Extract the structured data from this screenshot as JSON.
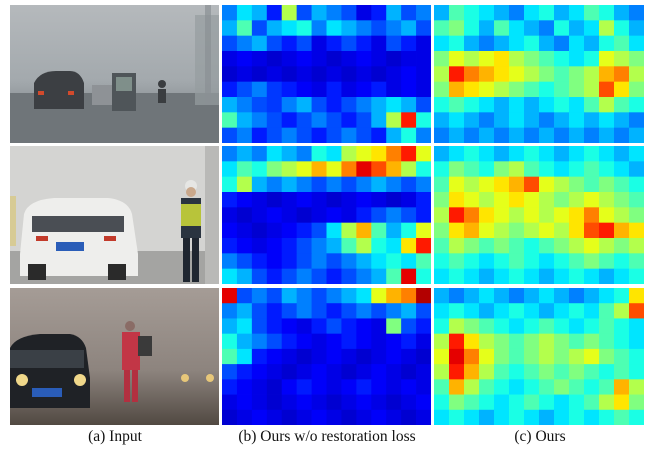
{
  "figure": {
    "captions": [
      "(a) Input",
      "(b) Ours w/o restoration loss",
      "(c) Ours"
    ],
    "rows": [
      {
        "photo": {
          "description_name": "foggy road with cars, tricycle and cyclist",
          "sky": "#a8aeb2",
          "road": "#6f7579"
        },
        "heatmap_b": {
          "cols": 14,
          "rows": 9,
          "rows_values": [
            [
              0.25,
              0.35,
              0.3,
              0.15,
              0.55,
              0.2,
              0.3,
              0.25,
              0.2,
              0.1,
              0.15,
              0.3,
              0.2,
              0.25
            ],
            [
              0.3,
              0.45,
              0.2,
              0.3,
              0.35,
              0.4,
              0.25,
              0.35,
              0.3,
              0.25,
              0.2,
              0.25,
              0.3,
              0.2
            ],
            [
              0.2,
              0.25,
              0.3,
              0.2,
              0.15,
              0.2,
              0.1,
              0.15,
              0.2,
              0.15,
              0.1,
              0.2,
              0.15,
              0.1
            ],
            [
              0.1,
              0.12,
              0.1,
              0.08,
              0.1,
              0.12,
              0.1,
              0.08,
              0.1,
              0.12,
              0.1,
              0.08,
              0.1,
              0.1
            ],
            [
              0.08,
              0.1,
              0.08,
              0.1,
              0.08,
              0.1,
              0.08,
              0.1,
              0.08,
              0.1,
              0.08,
              0.1,
              0.12,
              0.1
            ],
            [
              0.15,
              0.2,
              0.25,
              0.18,
              0.15,
              0.12,
              0.1,
              0.15,
              0.1,
              0.12,
              0.15,
              0.1,
              0.12,
              0.1
            ],
            [
              0.3,
              0.25,
              0.2,
              0.18,
              0.25,
              0.3,
              0.2,
              0.15,
              0.2,
              0.25,
              0.3,
              0.35,
              0.3,
              0.2
            ],
            [
              0.45,
              0.3,
              0.25,
              0.2,
              0.15,
              0.2,
              0.25,
              0.2,
              0.15,
              0.2,
              0.3,
              0.55,
              0.85,
              0.4
            ],
            [
              0.2,
              0.25,
              0.15,
              0.2,
              0.25,
              0.2,
              0.15,
              0.2,
              0.25,
              0.2,
              0.15,
              0.3,
              0.4,
              0.25
            ]
          ]
        },
        "heatmap_c": {
          "cols": 14,
          "rows": 9,
          "rows_values": [
            [
              0.3,
              0.45,
              0.4,
              0.35,
              0.3,
              0.25,
              0.35,
              0.4,
              0.3,
              0.35,
              0.45,
              0.4,
              0.3,
              0.25
            ],
            [
              0.45,
              0.5,
              0.4,
              0.3,
              0.45,
              0.35,
              0.3,
              0.25,
              0.4,
              0.3,
              0.35,
              0.55,
              0.4,
              0.3
            ],
            [
              0.35,
              0.4,
              0.3,
              0.25,
              0.3,
              0.35,
              0.4,
              0.3,
              0.25,
              0.35,
              0.3,
              0.4,
              0.45,
              0.35
            ],
            [
              0.5,
              0.6,
              0.55,
              0.6,
              0.65,
              0.55,
              0.5,
              0.45,
              0.4,
              0.35,
              0.4,
              0.6,
              0.55,
              0.5
            ],
            [
              0.55,
              0.85,
              0.75,
              0.7,
              0.65,
              0.6,
              0.55,
              0.5,
              0.45,
              0.5,
              0.55,
              0.7,
              0.75,
              0.55
            ],
            [
              0.5,
              0.7,
              0.65,
              0.6,
              0.55,
              0.5,
              0.45,
              0.4,
              0.45,
              0.5,
              0.55,
              0.8,
              0.65,
              0.5
            ],
            [
              0.4,
              0.45,
              0.4,
              0.35,
              0.3,
              0.35,
              0.3,
              0.35,
              0.4,
              0.35,
              0.45,
              0.55,
              0.45,
              0.4
            ],
            [
              0.3,
              0.35,
              0.3,
              0.25,
              0.3,
              0.35,
              0.3,
              0.25,
              0.3,
              0.35,
              0.3,
              0.35,
              0.3,
              0.25
            ],
            [
              0.25,
              0.3,
              0.25,
              0.3,
              0.25,
              0.3,
              0.25,
              0.3,
              0.25,
              0.3,
              0.25,
              0.3,
              0.25,
              0.3
            ]
          ]
        }
      },
      {
        "photo": {
          "description_name": "foggy street with white SUV and police officer",
          "sky": "#d2d2d0",
          "road": "#9a9a98"
        },
        "heatmap_b": {
          "cols": 14,
          "rows": 9,
          "rows_values": [
            [
              0.25,
              0.3,
              0.25,
              0.35,
              0.3,
              0.25,
              0.4,
              0.35,
              0.55,
              0.6,
              0.65,
              0.75,
              0.85,
              0.6
            ],
            [
              0.35,
              0.45,
              0.4,
              0.5,
              0.55,
              0.6,
              0.7,
              0.6,
              0.75,
              0.9,
              0.8,
              0.7,
              0.55,
              0.4
            ],
            [
              0.4,
              0.55,
              0.3,
              0.25,
              0.3,
              0.25,
              0.2,
              0.25,
              0.2,
              0.25,
              0.3,
              0.25,
              0.2,
              0.25
            ],
            [
              0.15,
              0.12,
              0.1,
              0.08,
              0.1,
              0.12,
              0.1,
              0.08,
              0.1,
              0.12,
              0.1,
              0.08,
              0.1,
              0.15
            ],
            [
              0.1,
              0.08,
              0.1,
              0.12,
              0.1,
              0.08,
              0.1,
              0.12,
              0.1,
              0.15,
              0.2,
              0.25,
              0.2,
              0.15
            ],
            [
              0.12,
              0.1,
              0.08,
              0.1,
              0.12,
              0.15,
              0.2,
              0.35,
              0.55,
              0.7,
              0.45,
              0.3,
              0.4,
              0.6
            ],
            [
              0.15,
              0.12,
              0.1,
              0.12,
              0.15,
              0.2,
              0.25,
              0.3,
              0.45,
              0.55,
              0.4,
              0.35,
              0.65,
              0.85
            ],
            [
              0.25,
              0.2,
              0.15,
              0.12,
              0.15,
              0.2,
              0.25,
              0.2,
              0.25,
              0.3,
              0.35,
              0.4,
              0.35,
              0.45
            ],
            [
              0.35,
              0.3,
              0.2,
              0.15,
              0.2,
              0.25,
              0.2,
              0.15,
              0.2,
              0.25,
              0.3,
              0.45,
              0.9,
              0.4
            ]
          ]
        },
        "heatmap_c": {
          "cols": 14,
          "rows": 9,
          "rows_values": [
            [
              0.3,
              0.35,
              0.4,
              0.35,
              0.3,
              0.35,
              0.4,
              0.35,
              0.3,
              0.35,
              0.4,
              0.35,
              0.3,
              0.35
            ],
            [
              0.4,
              0.5,
              0.45,
              0.4,
              0.5,
              0.55,
              0.45,
              0.4,
              0.35,
              0.4,
              0.45,
              0.4,
              0.35,
              0.3
            ],
            [
              0.45,
              0.6,
              0.55,
              0.6,
              0.65,
              0.7,
              0.8,
              0.6,
              0.55,
              0.5,
              0.45,
              0.5,
              0.45,
              0.4
            ],
            [
              0.5,
              0.65,
              0.6,
              0.55,
              0.6,
              0.65,
              0.6,
              0.55,
              0.5,
              0.55,
              0.6,
              0.55,
              0.5,
              0.45
            ],
            [
              0.55,
              0.85,
              0.75,
              0.65,
              0.6,
              0.55,
              0.6,
              0.55,
              0.6,
              0.65,
              0.75,
              0.6,
              0.55,
              0.5
            ],
            [
              0.5,
              0.65,
              0.7,
              0.6,
              0.55,
              0.5,
              0.55,
              0.6,
              0.55,
              0.65,
              0.8,
              0.85,
              0.7,
              0.65
            ],
            [
              0.45,
              0.55,
              0.5,
              0.45,
              0.5,
              0.45,
              0.4,
              0.45,
              0.5,
              0.55,
              0.6,
              0.55,
              0.5,
              0.55
            ],
            [
              0.4,
              0.45,
              0.4,
              0.35,
              0.4,
              0.45,
              0.4,
              0.35,
              0.4,
              0.45,
              0.5,
              0.45,
              0.4,
              0.45
            ],
            [
              0.35,
              0.4,
              0.35,
              0.3,
              0.35,
              0.4,
              0.35,
              0.3,
              0.35,
              0.4,
              0.35,
              0.3,
              0.35,
              0.4
            ]
          ]
        }
      },
      {
        "photo": {
          "description_name": "foggy road at dusk with dark car and pedestrian in red",
          "sky": "#9b928c",
          "road": "#5e5650"
        },
        "heatmap_b": {
          "cols": 14,
          "rows": 9,
          "rows_values": [
            [
              0.9,
              0.2,
              0.25,
              0.2,
              0.3,
              0.25,
              0.2,
              0.25,
              0.3,
              0.35,
              0.6,
              0.7,
              0.75,
              0.95
            ],
            [
              0.25,
              0.3,
              0.2,
              0.15,
              0.2,
              0.25,
              0.2,
              0.15,
              0.2,
              0.25,
              0.2,
              0.25,
              0.3,
              0.2
            ],
            [
              0.3,
              0.35,
              0.2,
              0.15,
              0.12,
              0.1,
              0.15,
              0.2,
              0.15,
              0.12,
              0.1,
              0.5,
              0.2,
              0.15
            ],
            [
              0.4,
              0.3,
              0.25,
              0.2,
              0.15,
              0.12,
              0.1,
              0.12,
              0.15,
              0.12,
              0.1,
              0.12,
              0.15,
              0.1
            ],
            [
              0.45,
              0.35,
              0.15,
              0.12,
              0.1,
              0.08,
              0.1,
              0.12,
              0.1,
              0.08,
              0.1,
              0.12,
              0.1,
              0.08
            ],
            [
              0.2,
              0.15,
              0.12,
              0.1,
              0.08,
              0.1,
              0.12,
              0.1,
              0.08,
              0.1,
              0.12,
              0.1,
              0.08,
              0.1
            ],
            [
              0.15,
              0.12,
              0.1,
              0.08,
              0.12,
              0.15,
              0.12,
              0.1,
              0.12,
              0.15,
              0.12,
              0.1,
              0.12,
              0.1
            ],
            [
              0.1,
              0.12,
              0.1,
              0.08,
              0.1,
              0.12,
              0.1,
              0.08,
              0.1,
              0.12,
              0.1,
              0.08,
              0.1,
              0.12
            ],
            [
              0.08,
              0.1,
              0.12,
              0.1,
              0.08,
              0.1,
              0.12,
              0.1,
              0.08,
              0.1,
              0.12,
              0.1,
              0.08,
              0.1
            ]
          ]
        },
        "heatmap_c": {
          "cols": 14,
          "rows": 9,
          "rows_values": [
            [
              0.3,
              0.25,
              0.3,
              0.35,
              0.3,
              0.25,
              0.3,
              0.35,
              0.3,
              0.25,
              0.3,
              0.35,
              0.4,
              0.65
            ],
            [
              0.35,
              0.4,
              0.35,
              0.3,
              0.35,
              0.4,
              0.35,
              0.3,
              0.35,
              0.4,
              0.35,
              0.45,
              0.55,
              0.8
            ],
            [
              0.4,
              0.55,
              0.5,
              0.45,
              0.4,
              0.35,
              0.4,
              0.45,
              0.4,
              0.35,
              0.4,
              0.45,
              0.4,
              0.35
            ],
            [
              0.55,
              0.85,
              0.65,
              0.55,
              0.5,
              0.45,
              0.5,
              0.55,
              0.5,
              0.45,
              0.5,
              0.45,
              0.4,
              0.35
            ],
            [
              0.6,
              0.9,
              0.75,
              0.6,
              0.5,
              0.45,
              0.5,
              0.55,
              0.5,
              0.55,
              0.6,
              0.5,
              0.45,
              0.4
            ],
            [
              0.55,
              0.85,
              0.7,
              0.55,
              0.45,
              0.4,
              0.45,
              0.5,
              0.45,
              0.5,
              0.45,
              0.4,
              0.45,
              0.4
            ],
            [
              0.45,
              0.7,
              0.55,
              0.45,
              0.4,
              0.35,
              0.4,
              0.45,
              0.5,
              0.45,
              0.4,
              0.45,
              0.7,
              0.55
            ],
            [
              0.4,
              0.5,
              0.45,
              0.4,
              0.35,
              0.4,
              0.45,
              0.4,
              0.35,
              0.4,
              0.45,
              0.55,
              0.65,
              0.5
            ],
            [
              0.35,
              0.4,
              0.35,
              0.3,
              0.35,
              0.4,
              0.35,
              0.3,
              0.35,
              0.4,
              0.35,
              0.4,
              0.45,
              0.4
            ]
          ]
        }
      }
    ]
  }
}
